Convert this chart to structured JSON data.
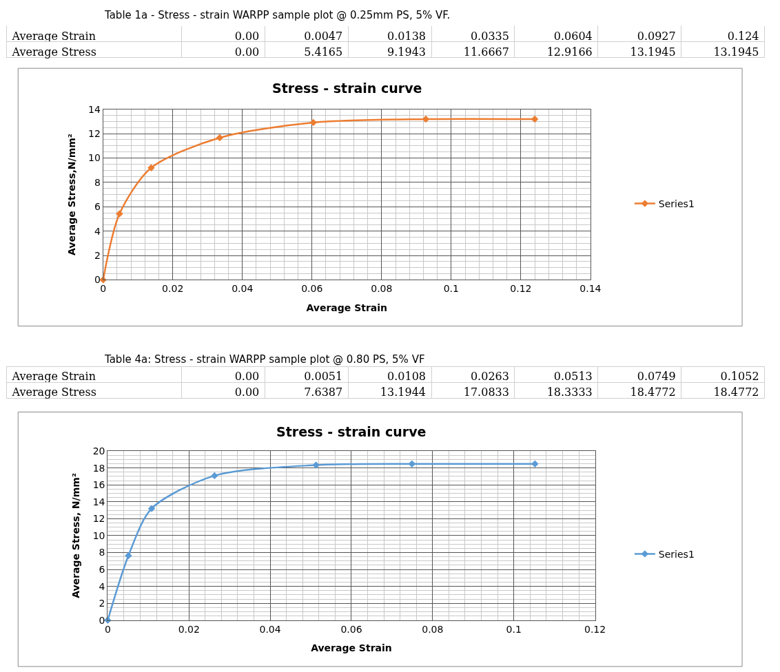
{
  "chart_data": [
    {
      "type": "line",
      "title": "Stress - strain curve",
      "subtitle": "Table 1a - Stress - strain WARPP sample plot @ 0.25mm PS, 5% VF.",
      "xlabel": "Average Strain",
      "ylabel": "Average Stress,N/mm²",
      "annotations": [
        "Average Strain",
        "0.00",
        "0.0047",
        "0.0138",
        "0.0335",
        "0.0604",
        "0.0927",
        "0.124",
        "Average Stress",
        "0.00",
        "5.4165",
        "9.1943",
        "11.6667",
        "12.9166",
        "13.1945",
        "13.1945"
      ],
      "x": [
        0,
        0.0047,
        0.0138,
        0.0335,
        0.0604,
        0.0927,
        0.124
      ],
      "series": [
        {
          "name": "Series1",
          "color": "#ed7d31",
          "values": [
            0,
            5.4165,
            9.1943,
            11.6667,
            12.9166,
            13.1945,
            13.1945
          ]
        }
      ],
      "xlim": [
        0,
        0.14
      ],
      "xticks": [
        0,
        0.02,
        0.04,
        0.06,
        0.08,
        0.1,
        0.12,
        0.14
      ],
      "ylim": [
        0,
        14
      ],
      "yticks": [
        0,
        2,
        4,
        6,
        8,
        10,
        12,
        14
      ],
      "grid": true,
      "legend": "right",
      "marker": "diamond",
      "line_style": "solid"
    },
    {
      "type": "line",
      "title": "Stress - strain curve",
      "subtitle": "Table 4a: Stress - strain WARPP sample plot @ 0.80 PS, 5% VF",
      "xlabel": "Average Strain",
      "ylabel": "Average Stress, N/mm²",
      "annotations": [
        "Average Strain",
        "0.00",
        "0.0051",
        "0.0108",
        "0.0263",
        "0.0513",
        "0.0749",
        "0.1052",
        "Average Stress",
        "0.00",
        "7.6387",
        "13.1944",
        "17.0833",
        "18.3333",
        "18.4772",
        "18.4772"
      ],
      "x": [
        0,
        0.0051,
        0.0108,
        0.0263,
        0.0513,
        0.0749,
        0.1052
      ],
      "series": [
        {
          "name": "Series1",
          "color": "#5b9bd5",
          "values": [
            0,
            7.6387,
            13.1944,
            17.0833,
            18.3333,
            18.4772,
            18.4772
          ]
        }
      ],
      "xlim": [
        0,
        0.12
      ],
      "xticks": [
        0,
        0.02,
        0.04,
        0.06,
        0.08,
        0.1,
        0.12
      ],
      "ylim": [
        0,
        20
      ],
      "yticks": [
        0,
        2,
        4,
        6,
        8,
        10,
        12,
        14,
        16,
        18,
        20
      ],
      "grid": true,
      "legend": "right",
      "marker": "diamond",
      "line_style": "solid"
    }
  ]
}
